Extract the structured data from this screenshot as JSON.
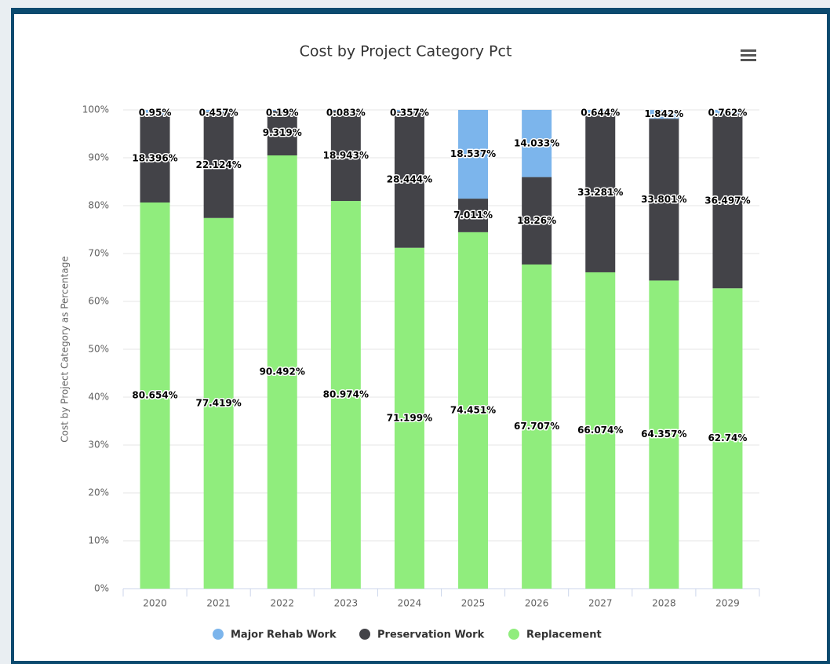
{
  "chart_data": {
    "type": "stacked_bar_percent",
    "title": "Cost by Project Category Pct",
    "y_axis_label": "Cost by Project Category as Percentage",
    "categories": [
      "2020",
      "2021",
      "2022",
      "2023",
      "2024",
      "2025",
      "2026",
      "2027",
      "2028",
      "2029"
    ],
    "series": [
      {
        "name": "Major Rehab Work",
        "color": "#7cb5ec",
        "values": [
          0.95,
          0.457,
          0.19,
          0.083,
          0.357,
          18.537,
          14.033,
          0.644,
          1.842,
          0.762
        ],
        "value_labels": [
          "0.95%",
          "0.457%",
          "0.19%",
          "0.083%",
          "0.357%",
          "18.537%",
          "14.033%",
          "0.644%",
          "1.842%",
          "0.762%"
        ]
      },
      {
        "name": "Preservation Work",
        "color": "#434348",
        "values": [
          18.396,
          22.124,
          9.319,
          18.943,
          28.444,
          7.011,
          18.26,
          33.281,
          33.801,
          36.497
        ],
        "value_labels": [
          "18.396%",
          "22.124%",
          "9.319%",
          "18.943%",
          "28.444%",
          "7.011%",
          "18.26%",
          "33.281%",
          "33.801%",
          "36.497%"
        ]
      },
      {
        "name": "Replacement",
        "color": "#90ed7d",
        "values": [
          80.654,
          77.419,
          90.492,
          80.974,
          71.199,
          74.451,
          67.707,
          66.074,
          64.357,
          62.74
        ],
        "value_labels": [
          "80.654%",
          "77.419%",
          "90.492%",
          "80.974%",
          "71.199%",
          "74.451%",
          "67.707%",
          "66.074%",
          "64.357%",
          "62.74%"
        ]
      }
    ],
    "ylim": [
      0,
      100
    ],
    "yticks": [
      {
        "value": 0,
        "label": "0%"
      },
      {
        "value": 10,
        "label": "10%"
      },
      {
        "value": 20,
        "label": "20%"
      },
      {
        "value": 30,
        "label": "30%"
      },
      {
        "value": 40,
        "label": "40%"
      },
      {
        "value": 50,
        "label": "50%"
      },
      {
        "value": 60,
        "label": "60%"
      },
      {
        "value": 70,
        "label": "70%"
      },
      {
        "value": 80,
        "label": "80%"
      },
      {
        "value": 90,
        "label": "90%"
      },
      {
        "value": 100,
        "label": "100%"
      }
    ],
    "grid": true,
    "legend": "bottom"
  }
}
